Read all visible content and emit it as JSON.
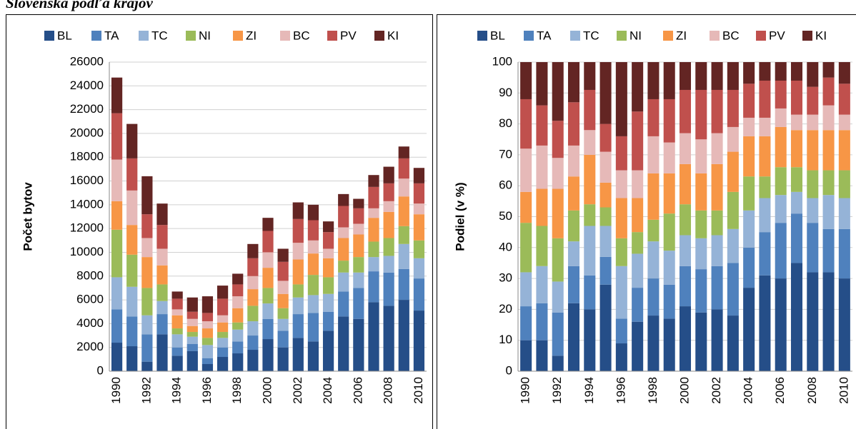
{
  "header": {
    "title": "Slovenská podľa krajov"
  },
  "chart_data": [
    {
      "type": "bar",
      "stacked": true,
      "y_label": "Počet bytov",
      "grid": true,
      "legend": "top",
      "categories": [
        1990,
        null,
        1992,
        null,
        1994,
        null,
        1996,
        null,
        1998,
        null,
        2000,
        null,
        2002,
        null,
        2004,
        null,
        2006,
        null,
        2008,
        null,
        2010
      ],
      "ylim": [
        0,
        26000
      ],
      "yticks": [
        0,
        2000,
        4000,
        6000,
        8000,
        10000,
        12000,
        14000,
        16000,
        18000,
        20000,
        22000,
        24000,
        26000
      ],
      "series": [
        {
          "name": "BL",
          "color": "#254e88",
          "values": [
            2400,
            2100,
            800,
            3100,
            1300,
            1700,
            600,
            1200,
            1500,
            1800,
            2700,
            2000,
            2800,
            2500,
            3400,
            4600,
            4400,
            5800,
            5500,
            6000,
            5100
          ]
        },
        {
          "name": "TA",
          "color": "#4f81bd",
          "values": [
            2800,
            2500,
            2300,
            1700,
            700,
            600,
            500,
            800,
            1000,
            1200,
            1700,
            1400,
            2000,
            2400,
            1600,
            2100,
            2600,
            2600,
            2800,
            2600,
            2700
          ]
        },
        {
          "name": "TC",
          "color": "#95b3d7",
          "values": [
            2700,
            2500,
            1600,
            1100,
            1100,
            600,
            1100,
            800,
            1000,
            1200,
            1300,
            1000,
            1400,
            1500,
            1500,
            1600,
            1300,
            1200,
            1400,
            2100,
            1700
          ]
        },
        {
          "name": "NI",
          "color": "#9bbb59",
          "values": [
            4000,
            2700,
            2300,
            1400,
            500,
            400,
            600,
            500,
            600,
            1300,
            1300,
            900,
            1100,
            1700,
            1400,
            1000,
            1300,
            1300,
            1500,
            1500,
            1500
          ]
        },
        {
          "name": "ZI",
          "color": "#f79646",
          "values": [
            2400,
            2500,
            2600,
            1600,
            1100,
            500,
            800,
            800,
            1200,
            1400,
            1700,
            1200,
            2100,
            1800,
            1600,
            1900,
            1900,
            2000,
            2200,
            2500,
            2200
          ]
        },
        {
          "name": "BC",
          "color": "#e6b9b8",
          "values": [
            3500,
            2900,
            1600,
            1400,
            500,
            600,
            600,
            600,
            1000,
            1100,
            1300,
            1100,
            1400,
            1100,
            800,
            900,
            900,
            800,
            900,
            1500,
            900
          ]
        },
        {
          "name": "PV",
          "color": "#c0504d",
          "values": [
            3900,
            2700,
            2000,
            2000,
            900,
            600,
            700,
            1400,
            1000,
            1500,
            1800,
            1600,
            2000,
            1700,
            1400,
            1800,
            1300,
            1800,
            1500,
            1700,
            1700
          ]
        },
        {
          "name": "KI",
          "color": "#632523",
          "values": [
            3000,
            2900,
            3200,
            1800,
            600,
            1200,
            1400,
            1100,
            900,
            1200,
            1100,
            1100,
            1400,
            1300,
            900,
            1000,
            800,
            1000,
            1400,
            1000,
            1300
          ]
        }
      ]
    },
    {
      "type": "bar",
      "stacked": true,
      "y_label": "Podiel (v %)",
      "grid": true,
      "legend": "top",
      "categories": [
        1990,
        null,
        1992,
        null,
        1994,
        null,
        1996,
        null,
        1998,
        null,
        2000,
        null,
        2002,
        null,
        2004,
        null,
        2006,
        null,
        2008,
        null,
        2010
      ],
      "ylim": [
        0,
        100
      ],
      "yticks": [
        0,
        10,
        20,
        30,
        40,
        50,
        60,
        70,
        80,
        90,
        100
      ],
      "series": [
        {
          "name": "BL",
          "color": "#254e88",
          "values": [
            10,
            10,
            5,
            22,
            20,
            28,
            9,
            16,
            18,
            17,
            21,
            19,
            20,
            18,
            27,
            31,
            30,
            35,
            32,
            32,
            30
          ]
        },
        {
          "name": "TA",
          "color": "#4f81bd",
          "values": [
            11,
            12,
            14,
            12,
            11,
            9,
            8,
            11,
            12,
            11,
            13,
            14,
            14,
            17,
            13,
            14,
            18,
            16,
            16,
            14,
            16
          ]
        },
        {
          "name": "TC",
          "color": "#95b3d7",
          "values": [
            11,
            12,
            10,
            8,
            16,
            10,
            17,
            11,
            12,
            11,
            10,
            10,
            10,
            11,
            12,
            11,
            9,
            7,
            8,
            11,
            10
          ]
        },
        {
          "name": "NI",
          "color": "#9bbb59",
          "values": [
            16,
            13,
            14,
            10,
            7,
            6,
            9,
            7,
            7,
            12,
            10,
            9,
            8,
            12,
            11,
            7,
            9,
            8,
            9,
            8,
            9
          ]
        },
        {
          "name": "ZI",
          "color": "#f79646",
          "values": [
            10,
            12,
            16,
            11,
            16,
            8,
            13,
            11,
            15,
            13,
            13,
            12,
            15,
            13,
            13,
            13,
            13,
            12,
            13,
            13,
            13
          ]
        },
        {
          "name": "BC",
          "color": "#e6b9b8",
          "values": [
            14,
            14,
            10,
            10,
            8,
            10,
            9,
            9,
            12,
            10,
            10,
            11,
            10,
            8,
            6,
            6,
            6,
            5,
            5,
            8,
            5
          ]
        },
        {
          "name": "PV",
          "color": "#c0504d",
          "values": [
            16,
            13,
            12,
            14,
            13,
            9,
            11,
            19,
            12,
            14,
            14,
            16,
            14,
            12,
            11,
            12,
            9,
            11,
            9,
            9,
            10
          ]
        },
        {
          "name": "KI",
          "color": "#632523",
          "values": [
            12,
            14,
            19,
            13,
            9,
            20,
            24,
            16,
            12,
            12,
            9,
            9,
            9,
            9,
            7,
            6,
            6,
            6,
            8,
            5,
            7
          ]
        }
      ]
    }
  ]
}
